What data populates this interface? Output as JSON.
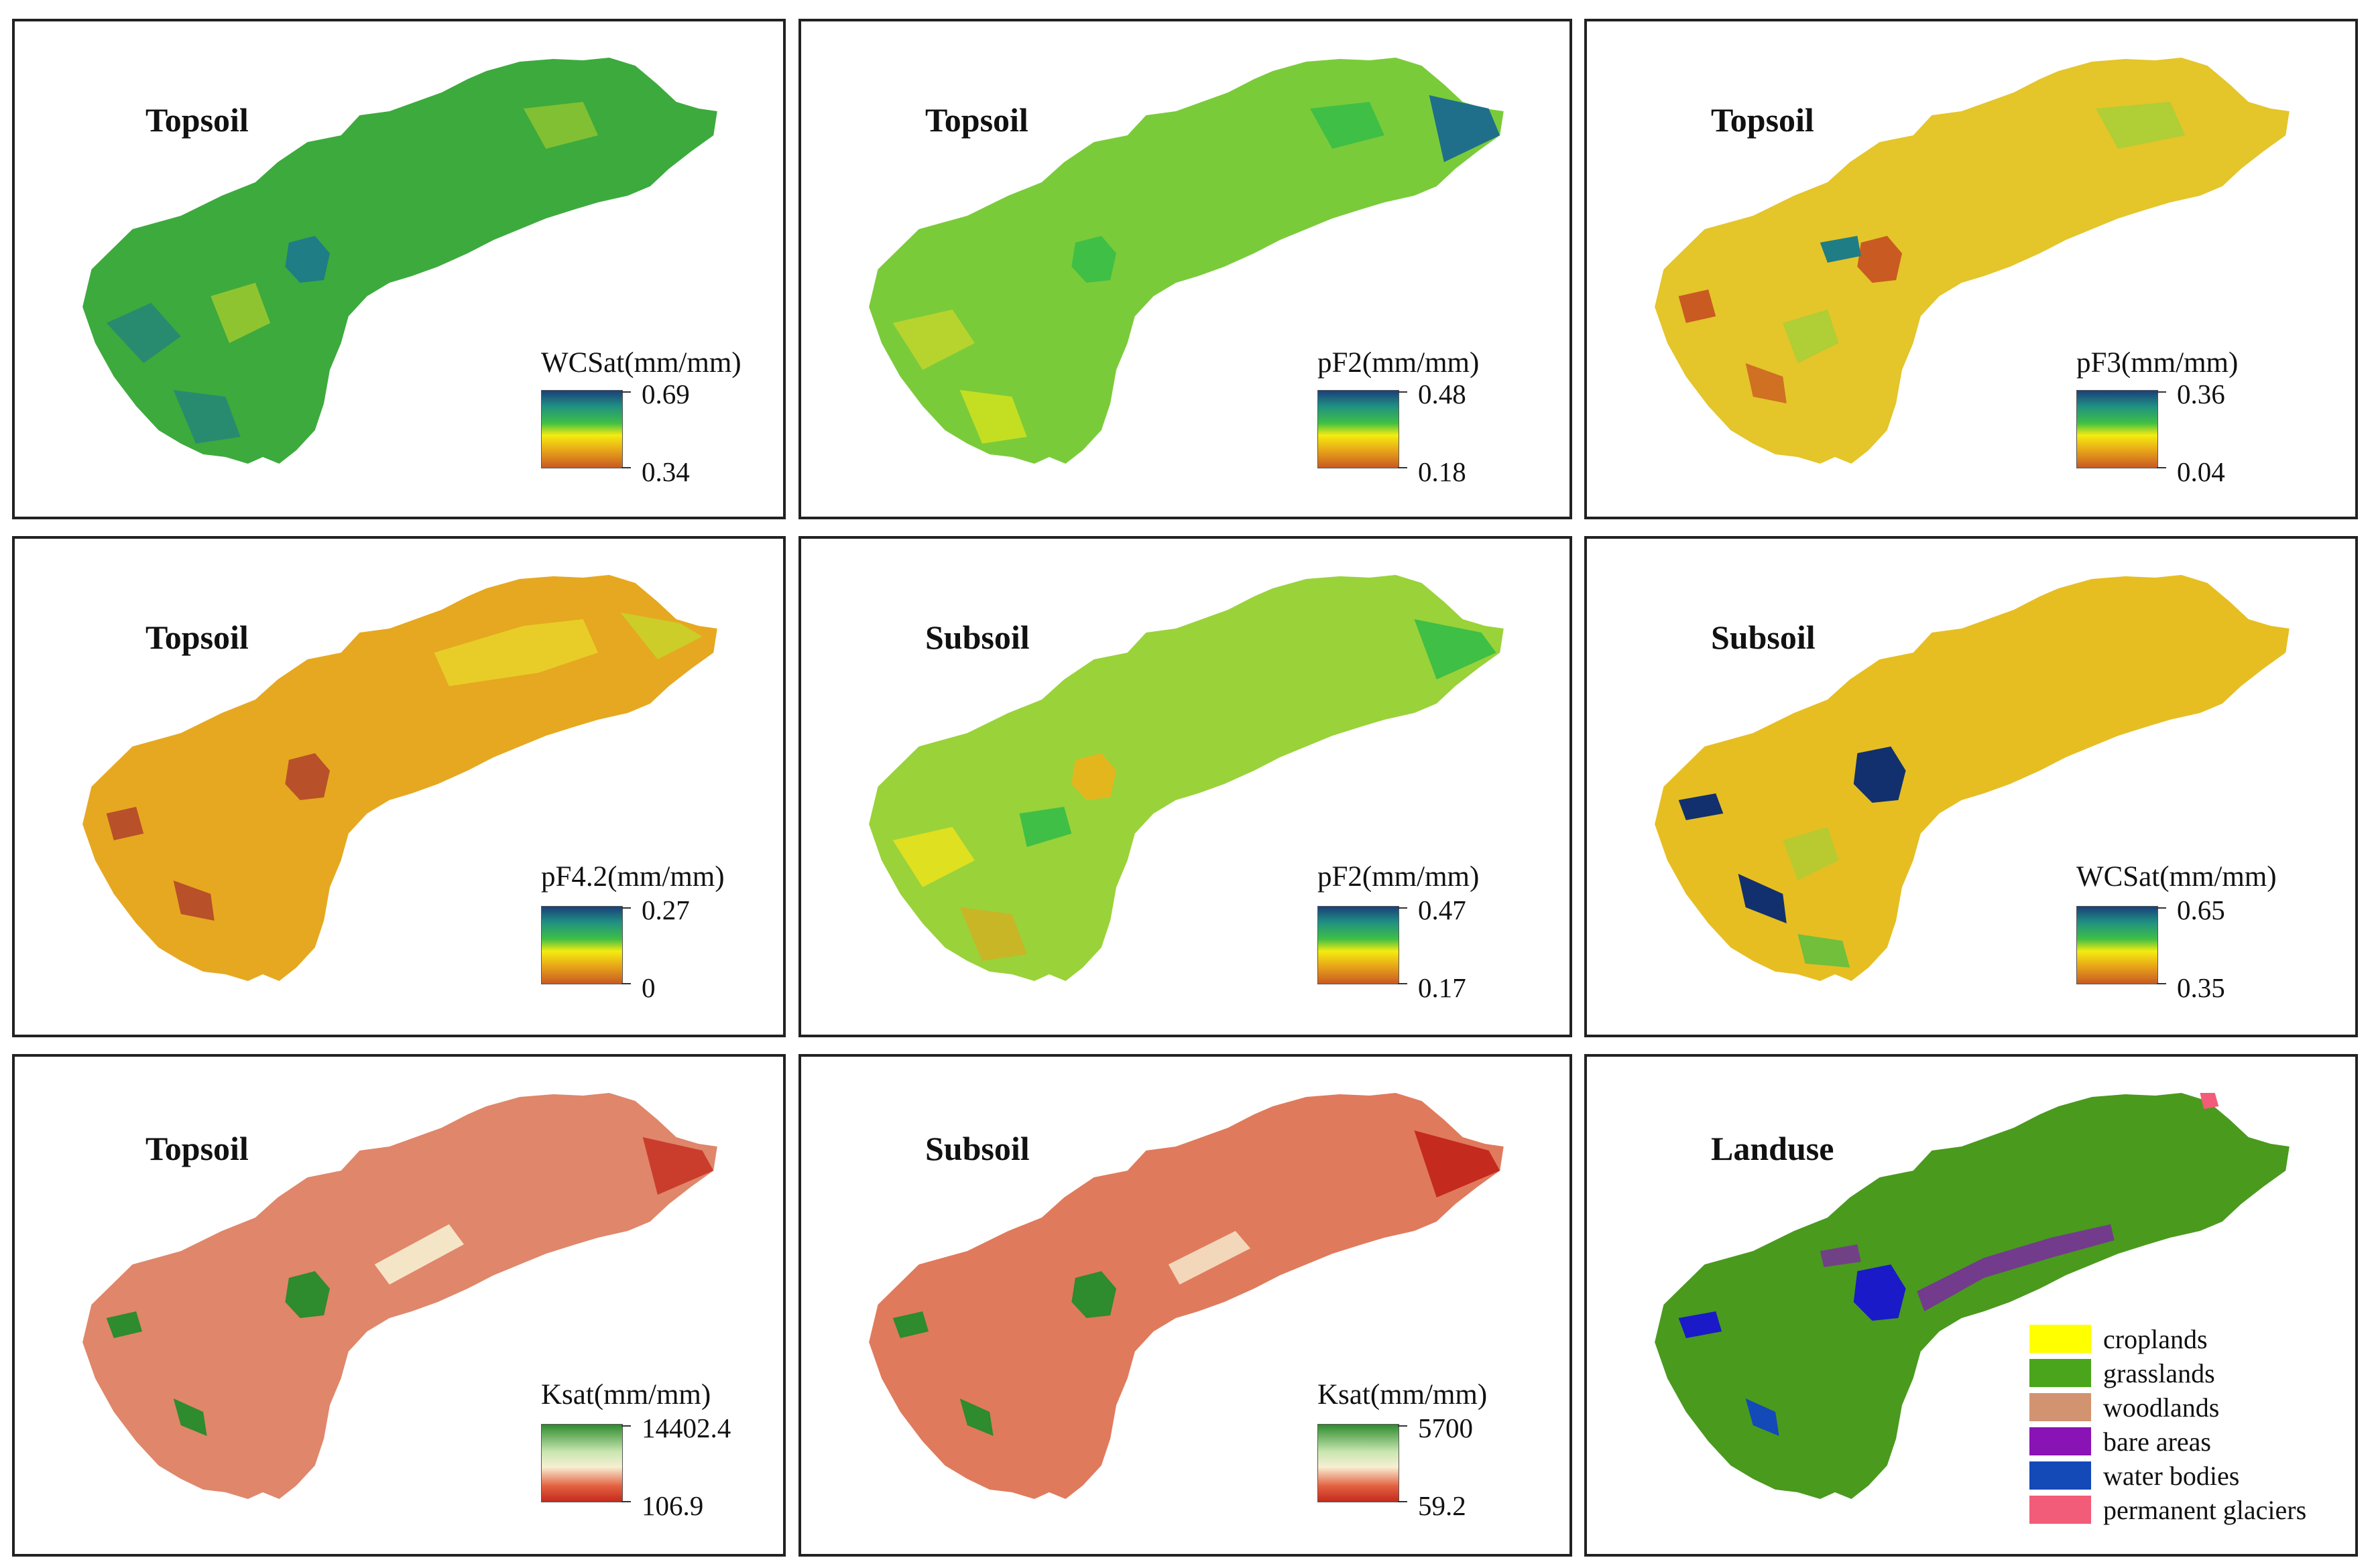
{
  "colors": {
    "panel_border": "#222222",
    "cb_moist": [
      "#1b3f7a",
      "#1f8f83",
      "#3fbf45",
      "#f5ec10",
      "#e7a319",
      "#c95a22"
    ],
    "cb_ksat": [
      "#2e8b2e",
      "#c8e6b0",
      "#f7efd2",
      "#e36040",
      "#c42a1e"
    ],
    "map_moist_topsoil": "#3daa3d",
    "map_dry_topsoil": "#e4c52a",
    "map_ksat": "#e0866a",
    "map_landuse": "#4a9a1e"
  },
  "panels": [
    {
      "title": "Topsoil",
      "legend_title": "WCSat(mm/mm)",
      "max": "0.69",
      "min": "0.34"
    },
    {
      "title": "Topsoil",
      "legend_title": "pF2(mm/mm)",
      "max": "0.48",
      "min": "0.18"
    },
    {
      "title": "Topsoil",
      "legend_title": "pF3(mm/mm)",
      "max": "0.36",
      "min": "0.04"
    },
    {
      "title": "Topsoil",
      "legend_title": "pF4.2(mm/mm)",
      "max": "0.27",
      "min": "0"
    },
    {
      "title": "Subsoil",
      "legend_title": "pF2(mm/mm)",
      "max": "0.47",
      "min": "0.17"
    },
    {
      "title": "Subsoil",
      "legend_title": "WCSat(mm/mm)",
      "max": "0.65",
      "min": "0.35"
    },
    {
      "title": "Topsoil",
      "legend_title": "Ksat(mm/mm)",
      "max": "14402.4",
      "min": "106.9"
    },
    {
      "title": "Subsoil",
      "legend_title": "Ksat(mm/mm)",
      "max": "5700",
      "min": "59.2"
    },
    {
      "title": "Landuse"
    }
  ],
  "landuse_legend": [
    {
      "label": "croplands",
      "color": "#ffff00"
    },
    {
      "label": "grasslands",
      "color": "#4aa51c"
    },
    {
      "label": "woodlands",
      "color": "#d29370"
    },
    {
      "label": "bare areas",
      "color": "#8a13b5"
    },
    {
      "label": "water bodies",
      "color": "#1449b8"
    },
    {
      "label": "permanent glaciers",
      "color": "#f25c78"
    }
  ]
}
